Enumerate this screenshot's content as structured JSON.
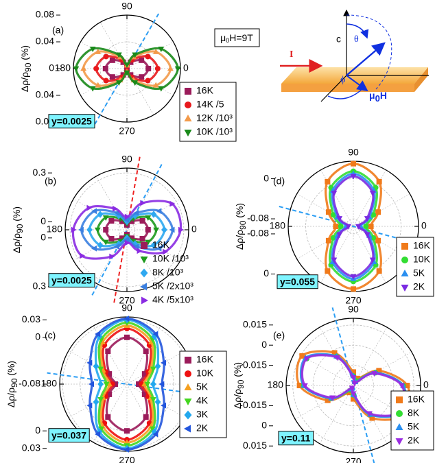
{
  "chart_data": [
    {
      "type": "polar",
      "panel": "(a)",
      "ylabel": [
        "Δρ/ρ",
        "90",
        " (%)"
      ],
      "note": "y=0.0025",
      "x": [
        0,
        30,
        60,
        90,
        120,
        150,
        180,
        210,
        240,
        270,
        300,
        330
      ],
      "xticks": [
        0,
        90,
        180,
        270
      ],
      "ylim": [
        0,
        0.08
      ],
      "yticks": [
        0,
        0.04,
        0.08
      ],
      "legend_border": true,
      "guides": [
        {
          "angle": 60,
          "color": "#2a9df4"
        }
      ],
      "series": [
        {
          "name": "16K",
          "color": "#9b1b5a",
          "marker": "square",
          "values": [
            0.032,
            0.025,
            0.011,
            0.004,
            0.011,
            0.025,
            0.032,
            0.025,
            0.011,
            0.004,
            0.011,
            0.025
          ]
        },
        {
          "name": "14K /5",
          "color": "#e8191c",
          "marker": "circle",
          "values": [
            0.046,
            0.036,
            0.015,
            0.004,
            0.015,
            0.036,
            0.046,
            0.036,
            0.015,
            0.004,
            0.015,
            0.036
          ]
        },
        {
          "name": "12K /10³",
          "color": "#f39a4a",
          "marker": "triangle-up",
          "values": [
            0.065,
            0.05,
            0.02,
            0.005,
            0.02,
            0.05,
            0.065,
            0.05,
            0.02,
            0.005,
            0.02,
            0.05
          ]
        },
        {
          "name": "10K /10³",
          "color": "#1a8a1a",
          "marker": "triangle-down",
          "values": [
            0.076,
            0.059,
            0.024,
            0.006,
            0.024,
            0.059,
            0.076,
            0.059,
            0.024,
            0.006,
            0.024,
            0.059
          ]
        }
      ]
    },
    {
      "type": "polar",
      "panel": "(b)",
      "ylabel": [
        "Δρ/ρ",
        "90",
        " (%)"
      ],
      "note": "y=0.0025",
      "x": [
        0,
        30,
        60,
        90,
        120,
        150,
        180,
        210,
        240,
        270,
        300,
        330
      ],
      "xticks": [
        0,
        90,
        180,
        270
      ],
      "ylim": [
        -0.05,
        0.33
      ],
      "yticks": [
        0,
        0.3
      ],
      "legend_border": false,
      "guides": [
        {
          "angle": 80,
          "color": "#ee2222"
        },
        {
          "angle": 62,
          "color": "#2a9df4"
        }
      ],
      "series": [
        {
          "name": "16K",
          "color": "#9b1b5a",
          "marker": "square",
          "values": [
            0.08,
            0.06,
            0.01,
            -0.02,
            0.01,
            0.06,
            0.08,
            0.06,
            0.01,
            -0.02,
            0.01,
            0.06
          ]
        },
        {
          "name": "10K /10³",
          "color": "#1e9a1e",
          "marker": "triangle-down",
          "values": [
            0.13,
            0.1,
            0.03,
            -0.01,
            0.03,
            0.1,
            0.13,
            0.1,
            0.03,
            -0.01,
            0.03,
            0.1
          ]
        },
        {
          "name": "8K /10³",
          "color": "#2fa8f0",
          "marker": "diamond",
          "values": [
            0.18,
            0.14,
            0.05,
            0,
            0.05,
            0.14,
            0.18,
            0.14,
            0.05,
            0,
            0.05,
            0.14
          ]
        },
        {
          "name": "5K /2x10³",
          "color": "#3a7fe0",
          "marker": "triangle-left",
          "values": [
            0.23,
            0.18,
            0.07,
            0.01,
            0.07,
            0.18,
            0.23,
            0.18,
            0.07,
            0.01,
            0.07,
            0.18
          ]
        },
        {
          "name": "4K /5x10³",
          "color": "#8a2be2",
          "marker": "triangle-right",
          "values": [
            0.28,
            0.27,
            0.14,
            0.03,
            0.1,
            0.22,
            0.28,
            0.27,
            0.14,
            0.03,
            0.1,
            0.22
          ]
        }
      ]
    },
    {
      "type": "polar",
      "panel": "(c)",
      "ylabel": [
        "Δρ/ρ",
        "90",
        " (%)"
      ],
      "note": "y=0.037",
      "x": [
        0,
        30,
        60,
        90,
        120,
        150,
        180,
        210,
        240,
        270,
        300,
        330
      ],
      "xticks": [
        0,
        90,
        180,
        270
      ],
      "ylim": [
        -0.08,
        0.035
      ],
      "yticks": [
        -0.08,
        0,
        0.03
      ],
      "legend_border": true,
      "guides": [
        {
          "angle": 172,
          "color": "#2a9df4"
        }
      ],
      "series": [
        {
          "name": "16K",
          "color": "#9b1b5a",
          "marker": "square",
          "values": [
            -0.06,
            -0.045,
            -0.015,
            0,
            -0.015,
            -0.045,
            -0.06,
            -0.045,
            -0.015,
            0,
            -0.015,
            -0.045
          ]
        },
        {
          "name": "10K",
          "color": "#ee1111",
          "marker": "circle",
          "values": [
            -0.055,
            -0.038,
            -0.003,
            0.015,
            -0.003,
            -0.038,
            -0.055,
            -0.038,
            -0.003,
            0.015,
            -0.003,
            -0.038
          ]
        },
        {
          "name": "5K",
          "color": "#f5a020",
          "marker": "triangle-up",
          "values": [
            -0.05,
            -0.033,
            0.003,
            0.02,
            0.003,
            -0.033,
            -0.05,
            -0.033,
            0.003,
            0.02,
            0.003,
            -0.033
          ]
        },
        {
          "name": "4K",
          "color": "#44d620",
          "marker": "triangle-down",
          "values": [
            -0.045,
            -0.028,
            0.008,
            0.025,
            0.008,
            -0.028,
            -0.045,
            -0.028,
            0.008,
            0.025,
            0.008,
            -0.028
          ]
        },
        {
          "name": "3K",
          "color": "#22a8ee",
          "marker": "diamond",
          "values": [
            -0.035,
            -0.019,
            0.014,
            0.03,
            0.014,
            -0.019,
            -0.035,
            -0.019,
            0.014,
            0.03,
            0.014,
            -0.019
          ]
        },
        {
          "name": "2K",
          "color": "#2255dd",
          "marker": "triangle-left",
          "values": [
            -0.02,
            -0.007,
            0.019,
            0.032,
            0.019,
            -0.007,
            -0.02,
            -0.007,
            0.019,
            0.032,
            0.019,
            -0.007
          ]
        }
      ]
    },
    {
      "type": "polar",
      "panel": "(d)",
      "ylabel": [
        "Δρ/ρ",
        "90",
        " (%)"
      ],
      "note": "y=0.055",
      "x": [
        0,
        30,
        60,
        90,
        120,
        150,
        180,
        210,
        240,
        270,
        300,
        330
      ],
      "xticks": [
        0,
        90,
        180,
        270
      ],
      "ylim": [
        -0.095,
        0.035
      ],
      "yticks": [
        -0.08,
        0
      ],
      "legend_border": true,
      "guides": [
        {
          "angle": 165,
          "color": "#2a9df4"
        }
      ],
      "series": [
        {
          "name": "16K",
          "color": "#f07a1a",
          "marker": "square",
          "values": [
            -0.06,
            -0.038,
            0.008,
            0.03,
            0.008,
            -0.038,
            -0.06,
            -0.038,
            0.008,
            0.03,
            0.008,
            -0.038
          ]
        },
        {
          "name": "10K",
          "color": "#33dd33",
          "marker": "circle",
          "values": [
            -0.07,
            -0.049,
            -0.006,
            0.015,
            -0.006,
            -0.049,
            -0.07,
            -0.049,
            -0.006,
            0.015,
            -0.006,
            -0.049
          ]
        },
        {
          "name": "5K",
          "color": "#2a8ff0",
          "marker": "triangle-up",
          "values": [
            -0.08,
            -0.058,
            -0.013,
            0.01,
            -0.013,
            -0.058,
            -0.08,
            -0.058,
            -0.013,
            0.01,
            -0.013,
            -0.058
          ]
        },
        {
          "name": "2K",
          "color": "#7a2be2",
          "marker": "triangle-down",
          "values": [
            -0.085,
            -0.063,
            -0.018,
            0.005,
            -0.018,
            -0.063,
            -0.085,
            -0.063,
            -0.018,
            0.005,
            -0.018,
            -0.063
          ]
        }
      ]
    },
    {
      "type": "polar",
      "panel": "(e)",
      "ylabel": [
        "Δρ/ρ",
        "90",
        " (%)"
      ],
      "note": "y=0.11",
      "x": [
        0,
        30,
        60,
        90,
        120,
        150,
        180,
        210,
        240,
        270,
        300,
        330
      ],
      "xticks": [
        0,
        90,
        180,
        270
      ],
      "ylim": [
        -0.03,
        0.02
      ],
      "yticks": [
        -0.015,
        0,
        0.015
      ],
      "legend_border": true,
      "guides": [
        {
          "angle": 105,
          "color": "#2a9df4"
        }
      ],
      "series": [
        {
          "name": "16K",
          "color": "#f07a1a",
          "marker": "square",
          "values": [
            0.01,
            -0.008,
            -0.024,
            -0.02,
            -0.002,
            0.014,
            0.01,
            -0.008,
            -0.024,
            -0.02,
            -0.002,
            0.014
          ]
        },
        {
          "name": "8K",
          "color": "#33dd33",
          "marker": "circle",
          "values": [
            0.007,
            -0.011,
            -0.026,
            -0.023,
            -0.005,
            0.01,
            0.007,
            -0.011,
            -0.026,
            -0.023,
            -0.005,
            0.01
          ]
        },
        {
          "name": "5K",
          "color": "#2a8ff0",
          "marker": "triangle-up",
          "values": [
            0.007,
            -0.011,
            -0.027,
            -0.023,
            -0.005,
            0.011,
            0.007,
            -0.011,
            -0.027,
            -0.023,
            -0.005,
            0.011
          ]
        },
        {
          "name": "2K",
          "color": "#9a2be2",
          "marker": "triangle-down",
          "values": [
            0.006,
            -0.012,
            -0.028,
            -0.024,
            -0.006,
            0.01,
            0.006,
            -0.012,
            -0.028,
            -0.024,
            -0.006,
            0.01
          ]
        }
      ]
    }
  ],
  "field_box": [
    "μ",
    "0",
    "H=9T"
  ],
  "diagram": {
    "c": "c",
    "theta": "θ",
    "current": "I",
    "phi": "ϕ",
    "field": [
      "μ",
      "0",
      "H"
    ]
  }
}
